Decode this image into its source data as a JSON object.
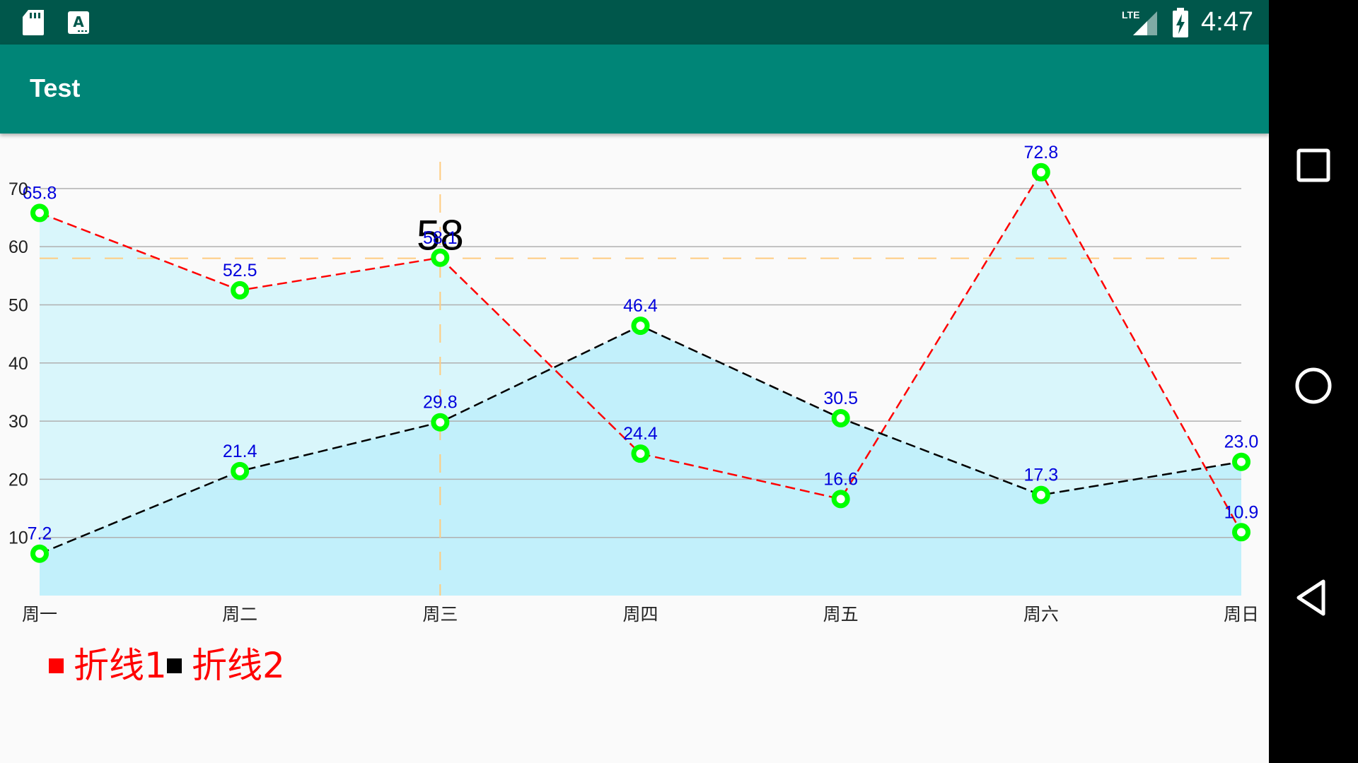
{
  "app": {
    "title": "Test"
  },
  "status_bar": {
    "time": "4:47",
    "network": "LTE",
    "icons": [
      "sd-card-icon",
      "a-notification-icon",
      "lte-signal-icon",
      "battery-charging-icon"
    ]
  },
  "nav_bar": {
    "buttons": [
      "overview-square-icon",
      "home-circle-icon",
      "back-triangle-icon"
    ]
  },
  "chart_data": {
    "type": "line",
    "categories": [
      "周一",
      "周二",
      "周三",
      "周四",
      "周五",
      "周六",
      "周日"
    ],
    "yticks": [
      10,
      20,
      30,
      40,
      50,
      60,
      70
    ],
    "ylim": [
      0,
      78
    ],
    "grid": true,
    "series": [
      {
        "name": "折线1",
        "values": [
          65.8,
          52.5,
          58.1,
          24.4,
          16.6,
          72.8,
          10.9
        ],
        "labels": [
          "65.8",
          "52.5",
          "58.1",
          "24.4",
          "16.6",
          "72.8",
          "10.9"
        ],
        "color": "#ff0000",
        "fill": "#d9f6fb",
        "dashed": true
      },
      {
        "name": "折线2",
        "values": [
          7.2,
          21.4,
          29.8,
          46.4,
          30.5,
          17.3,
          23.0
        ],
        "labels": [
          "7.2",
          "21.4",
          "29.8",
          "46.4",
          "30.5",
          "17.3",
          "23.0"
        ],
        "color": "#000000",
        "fill": "#c2f0fb",
        "dashed": true
      }
    ],
    "marker_color": "#00ff00",
    "value_label_color": "#0000dd",
    "highlight": {
      "category_index": 2,
      "y": 58,
      "label": "58",
      "color": "#ffcc80"
    },
    "legend": {
      "placement": "bottom-left"
    }
  }
}
